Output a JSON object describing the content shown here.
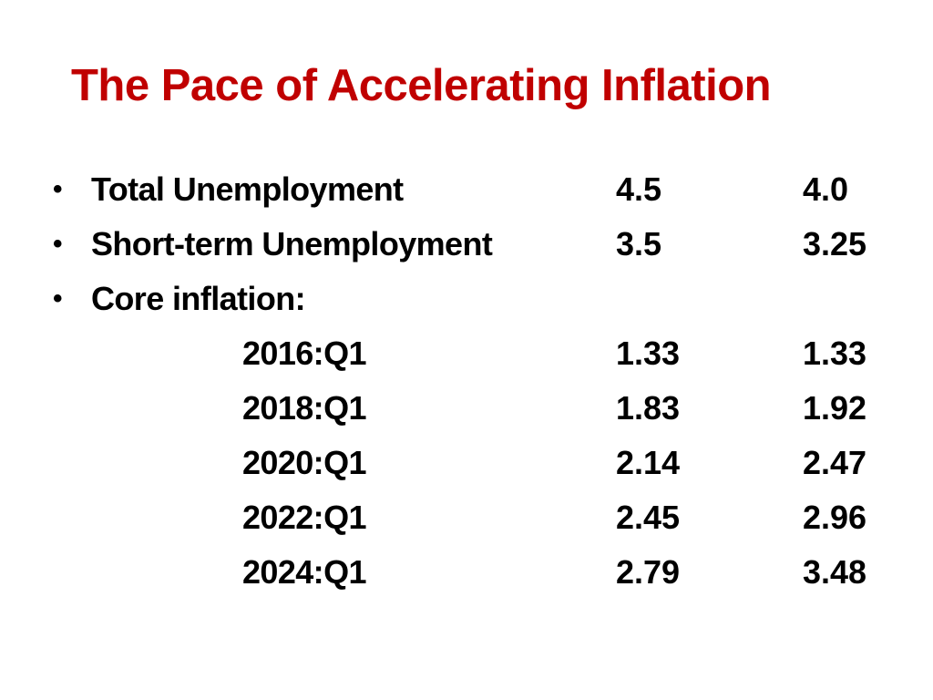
{
  "title": "The Pace of Accelerating Inflation",
  "bullet_glyph": "•",
  "rows": [
    {
      "label": "Total Unemployment",
      "v1": "4.5",
      "v2": "4.0"
    },
    {
      "label": "Short-term Unemployment",
      "v1": "3.5",
      "v2": "3.25"
    },
    {
      "label": "Core inflation:",
      "v1": "",
      "v2": ""
    }
  ],
  "core_inflation": [
    {
      "period": "2016:Q1",
      "v1": "1.33",
      "v2": "1.33"
    },
    {
      "period": "2018:Q1",
      "v1": "1.83",
      "v2": "1.92"
    },
    {
      "period": "2020:Q1",
      "v1": "2.14",
      "v2": "2.47"
    },
    {
      "period": "2022:Q1",
      "v1": "2.45",
      "v2": "2.96"
    },
    {
      "period": "2024:Q1",
      "v1": "2.79",
      "v2": "3.48"
    }
  ]
}
